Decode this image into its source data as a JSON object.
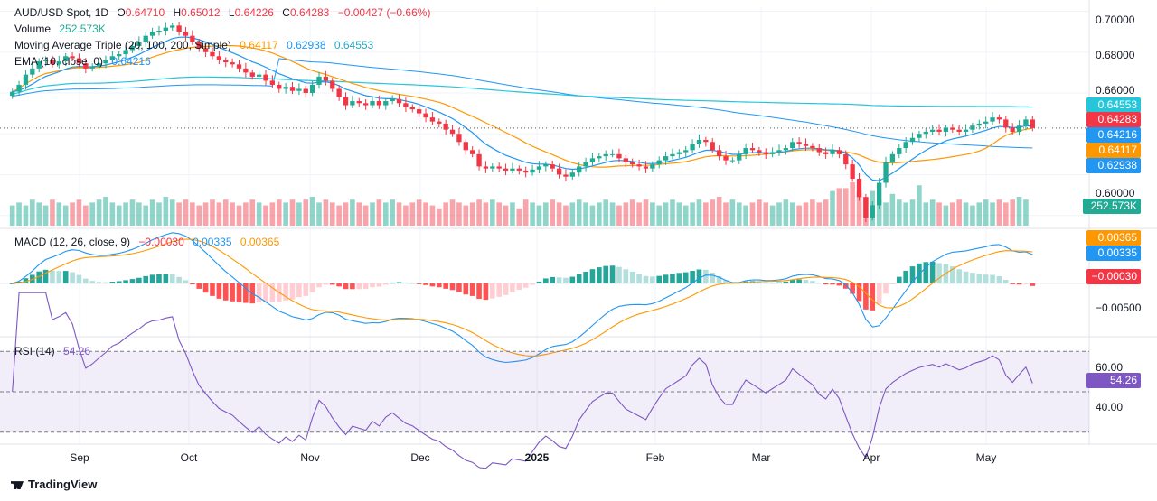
{
  "header": {
    "symbol": "AUD/USD Spot, 1D",
    "open_label": "O",
    "open": "0.64710",
    "high_label": "H",
    "high": "0.65012",
    "low_label": "L",
    "low": "0.64226",
    "close_label": "C",
    "close": "0.64283",
    "change": "−0.00427 (−0.66%)",
    "volume_label": "Volume",
    "volume": "252.573K",
    "ma_label": "Moving Average Triple (20, 100, 200, Simple)",
    "ma20": "0.64117",
    "ma100": "0.62938",
    "ma200": "0.64553",
    "ema_label": "EMA (10, close, 0)",
    "ema": "0.64216"
  },
  "macd_header": {
    "label": "MACD (12, 26, close, 9)",
    "hist": "−0.00030",
    "macd": "0.00335",
    "signal": "0.00365"
  },
  "rsi_header": {
    "label": "RSI (14)",
    "value": "54.26"
  },
  "price_axis": [
    "0.70000",
    "0.68000",
    "0.66000",
    "0.60000"
  ],
  "macd_axis": [
    "−0.00500"
  ],
  "rsi_axis": [
    "60.00",
    "40.00"
  ],
  "price_labels": {
    "ma200": "0.64553",
    "close": "0.64283",
    "ema": "0.64216",
    "ma20": "0.64117",
    "ma100": "0.62938",
    "volume": "252.573K"
  },
  "macd_labels": {
    "signal": "0.00365",
    "macd": "0.00335",
    "hist": "−0.00030"
  },
  "rsi_label": "54.26",
  "x_axis": [
    "Sep",
    "Oct",
    "Nov",
    "Dec",
    "2025",
    "Feb",
    "Mar",
    "Apr",
    "May"
  ],
  "brand": "TradingView",
  "colors": {
    "up": "#22ab94",
    "down": "#f23645",
    "ma20": "#ff9800",
    "ma100": "#2196f3",
    "ma200": "#26c6da",
    "ema": "#2196f3",
    "rsi": "#7e57c2"
  },
  "chart_data": {
    "type": "candlestick",
    "title": "AUD/USD Spot, 1D",
    "ylim": [
      0.595,
      0.702
    ],
    "month_ticks": [
      "Sep",
      "Oct",
      "Nov",
      "Dec",
      "2025",
      "Feb",
      "Mar",
      "Apr",
      "May"
    ],
    "close_series": [
      0.6606,
      0.664,
      0.669,
      0.672,
      0.6755,
      0.676,
      0.674,
      0.6755,
      0.678,
      0.677,
      0.6745,
      0.672,
      0.673,
      0.6745,
      0.676,
      0.678,
      0.679,
      0.681,
      0.683,
      0.685,
      0.688,
      0.69,
      0.6905,
      0.692,
      0.693,
      0.69,
      0.688,
      0.685,
      0.682,
      0.68,
      0.678,
      0.676,
      0.675,
      0.674,
      0.672,
      0.67,
      0.668,
      0.669,
      0.666,
      0.664,
      0.662,
      0.663,
      0.661,
      0.662,
      0.66,
      0.664,
      0.668,
      0.666,
      0.662,
      0.658,
      0.654,
      0.656,
      0.655,
      0.654,
      0.656,
      0.654,
      0.656,
      0.657,
      0.655,
      0.653,
      0.652,
      0.65,
      0.648,
      0.646,
      0.645,
      0.642,
      0.64,
      0.636,
      0.632,
      0.63,
      0.624,
      0.623,
      0.624,
      0.623,
      0.622,
      0.623,
      0.622,
      0.621,
      0.6225,
      0.624,
      0.625,
      0.623,
      0.62,
      0.619,
      0.621,
      0.624,
      0.626,
      0.628,
      0.629,
      0.63,
      0.63,
      0.628,
      0.626,
      0.625,
      0.624,
      0.623,
      0.625,
      0.627,
      0.629,
      0.63,
      0.631,
      0.632,
      0.635,
      0.637,
      0.636,
      0.632,
      0.629,
      0.627,
      0.627,
      0.63,
      0.633,
      0.632,
      0.631,
      0.63,
      0.631,
      0.632,
      0.633,
      0.636,
      0.635,
      0.634,
      0.633,
      0.631,
      0.63,
      0.632,
      0.63,
      0.625,
      0.618,
      0.609,
      0.599,
      0.605,
      0.616,
      0.626,
      0.63,
      0.633,
      0.636,
      0.638,
      0.64,
      0.641,
      0.642,
      0.641,
      0.643,
      0.642,
      0.641,
      0.642,
      0.644,
      0.645,
      0.646,
      0.648,
      0.647,
      0.643,
      0.641,
      0.644,
      0.647,
      0.6428
    ],
    "volume_series": [
      0.7,
      0.8,
      0.7,
      0.9,
      0.8,
      0.7,
      0.9,
      0.8,
      0.7,
      0.8,
      0.9,
      0.7,
      0.8,
      0.9,
      1.0,
      0.8,
      0.7,
      0.8,
      0.9,
      0.8,
      0.7,
      0.9,
      0.8,
      1.0,
      0.9,
      0.8,
      0.9,
      0.8,
      0.7,
      0.8,
      0.9,
      0.8,
      0.9,
      0.8,
      0.7,
      0.8,
      0.9,
      0.8,
      0.7,
      0.8,
      0.9,
      0.8,
      0.9,
      0.8,
      0.9,
      1.0,
      0.8,
      0.9,
      0.8,
      0.7,
      0.8,
      0.9,
      0.8,
      0.7,
      0.8,
      0.9,
      0.8,
      0.9,
      0.8,
      0.7,
      0.8,
      0.9,
      0.8,
      0.7,
      0.6,
      0.8,
      0.9,
      0.8,
      0.7,
      0.8,
      0.9,
      0.8,
      0.9,
      0.8,
      0.7,
      0.8,
      0.6,
      0.9,
      0.8,
      0.7,
      0.8,
      0.9,
      0.8,
      0.7,
      0.8,
      0.9,
      0.8,
      0.7,
      0.8,
      0.9,
      0.8,
      0.7,
      0.8,
      0.9,
      0.8,
      0.9,
      0.8,
      0.7,
      0.8,
      0.9,
      0.8,
      0.7,
      0.8,
      0.9,
      0.8,
      0.9,
      1.0,
      0.8,
      0.9,
      0.8,
      0.7,
      0.8,
      0.9,
      0.8,
      0.7,
      0.8,
      0.9,
      0.8,
      0.7,
      0.8,
      0.9,
      0.8,
      0.9,
      1.2,
      1.3,
      1.3,
      1.5,
      1.2,
      1.0,
      1.2,
      0.9,
      0.8,
      1.1,
      0.9,
      0.8,
      0.9,
      1.4,
      0.8,
      0.9,
      0.8,
      0.7,
      0.8,
      0.9,
      0.8,
      0.7,
      0.8,
      0.9,
      0.8,
      0.9,
      0.8,
      0.9,
      1.0,
      0.9
    ],
    "macd": {
      "ylim": [
        -0.0065,
        0.0045
      ],
      "last_macd": 0.00335,
      "last_signal": 0.00365,
      "last_hist": -0.0003
    },
    "rsi": {
      "ylim": [
        25,
        75
      ],
      "levels": [
        70,
        50,
        30
      ],
      "last": 54.26
    }
  }
}
